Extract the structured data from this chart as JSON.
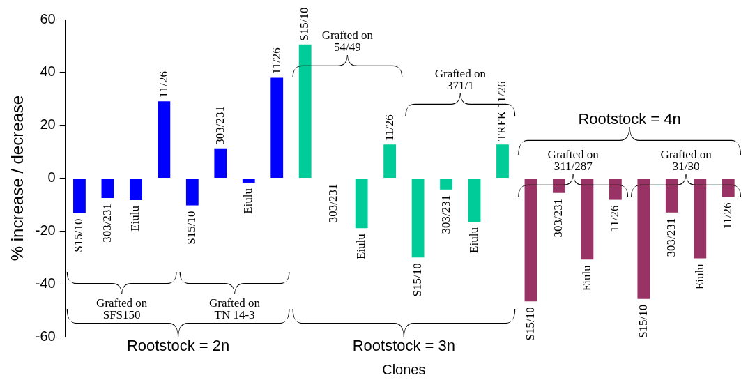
{
  "chart_data": {
    "type": "bar",
    "xlabel": "Clones",
    "ylabel": "% increase / decrease",
    "categories": [
      "S15/10",
      "303/231",
      "Eiulu",
      "11/26",
      "S15/10",
      "303/231",
      "Eiulu",
      "11/26",
      "S15/10",
      "303/231",
      "Eiulu",
      "11/26",
      "S15/10",
      "303/231",
      "Eiulu",
      "TRFK 11/26",
      "S15/10",
      "303/231",
      "Eiulu",
      "11/26",
      "S15/10",
      "303/231",
      "Eiulu",
      "11/26"
    ],
    "values": [
      -13.2,
      -7.5,
      -8.3,
      29.1,
      -10.3,
      11.3,
      -1.7,
      38,
      50.6,
      0,
      -18.9,
      12.7,
      -30,
      -4.3,
      -16.5,
      12.7,
      -46.6,
      -5.6,
      -30.8,
      -8.2,
      -45.7,
      -13,
      -30.3,
      -7.1
    ],
    "colors": [
      "#0000ff",
      "#0000ff",
      "#0000ff",
      "#0000ff",
      "#0000ff",
      "#0000ff",
      "#0000ff",
      "#0000ff",
      "#00cc99",
      "#00cc99",
      "#00cc99",
      "#00cc99",
      "#00cc99",
      "#00cc99",
      "#00cc99",
      "#00cc99",
      "#993366",
      "#993366",
      "#993366",
      "#993366",
      "#993366",
      "#993366",
      "#993366",
      "#993366"
    ],
    "ylim": [
      -60,
      60
    ],
    "yticks": [
      -60,
      -40,
      -20,
      0,
      20,
      40,
      60
    ],
    "grid": false,
    "tick_labels": "y",
    "annotations": [
      "Grafted on\nSFS150",
      "Grafted on\nTN 14-3",
      "Rootstock = 2n",
      "Grafted on\n54/49",
      "Grafted on\n371/1",
      "Rootstock = 3n",
      "Rootstock = 4n",
      "Grafted on\n311/287",
      "Grafted on\n31/30"
    ]
  }
}
